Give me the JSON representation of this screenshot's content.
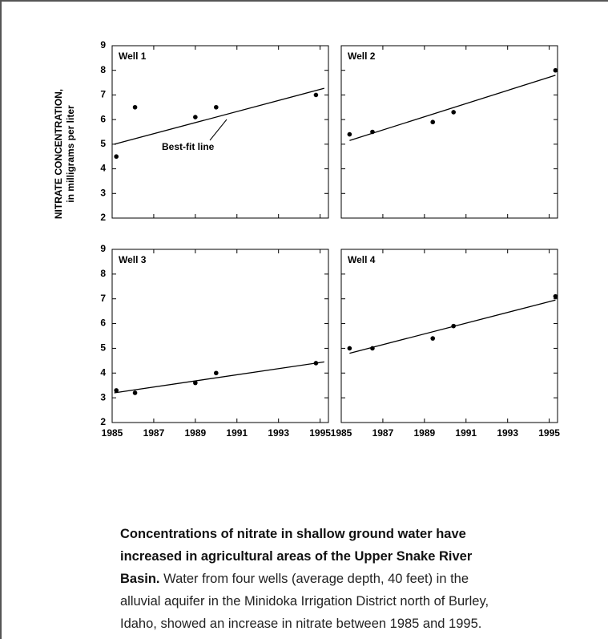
{
  "y_label": [
    "NITRATE CONCENTRATION,",
    "in milligrams per liter"
  ],
  "chart_data": [
    {
      "type": "scatter",
      "title": "Well 1",
      "x": [
        1985.2,
        1986.1,
        1989,
        1990,
        1994.8
      ],
      "values": [
        4.5,
        6.5,
        6.1,
        6.5,
        7.0
      ],
      "fit": {
        "x": [
          1985.1,
          1995.2
        ],
        "values": [
          5.0,
          7.27
        ]
      },
      "annotation": "Best-fit line",
      "xlim": [
        1985,
        1995.4
      ],
      "ylim": [
        2,
        9
      ],
      "xticks": [
        1985,
        1987,
        1989,
        1991,
        1993,
        1995
      ],
      "yticks": [
        2,
        3,
        4,
        5,
        6,
        7,
        8,
        9
      ],
      "color": "#000000"
    },
    {
      "type": "scatter",
      "title": "Well 2",
      "x": [
        1985.4,
        1986.5,
        1989.4,
        1990.4,
        1995.3
      ],
      "values": [
        5.4,
        5.5,
        5.9,
        6.3,
        8.0
      ],
      "fit": {
        "x": [
          1985.4,
          1995.3
        ],
        "values": [
          5.15,
          7.8
        ]
      },
      "xlim": [
        1985,
        1995.4
      ],
      "ylim": [
        2,
        9
      ],
      "xticks": [
        1985,
        1987,
        1989,
        1991,
        1993,
        1995
      ],
      "yticks": [
        2,
        3,
        4,
        5,
        6,
        7,
        8,
        9
      ],
      "color": "#000000"
    },
    {
      "type": "scatter",
      "title": "Well 3",
      "x": [
        1985.2,
        1986.1,
        1989,
        1990,
        1994.8
      ],
      "values": [
        3.3,
        3.2,
        3.6,
        4.0,
        4.4
      ],
      "fit": {
        "x": [
          1985.1,
          1995.2
        ],
        "values": [
          3.2,
          4.45
        ]
      },
      "xlim": [
        1985,
        1995.4
      ],
      "ylim": [
        2,
        9
      ],
      "xticks": [
        1985,
        1987,
        1989,
        1991,
        1993,
        1995
      ],
      "yticks": [
        2,
        3,
        4,
        5,
        6,
        7,
        8,
        9
      ],
      "color": "#000000"
    },
    {
      "type": "scatter",
      "title": "Well 4",
      "x": [
        1985.4,
        1986.5,
        1989.4,
        1990.4,
        1995.3
      ],
      "values": [
        5.0,
        5.0,
        5.4,
        5.9,
        7.1
      ],
      "fit": {
        "x": [
          1985.4,
          1995.3
        ],
        "values": [
          4.8,
          6.95
        ]
      },
      "xlim": [
        1985,
        1995.4
      ],
      "ylim": [
        2,
        9
      ],
      "xticks": [
        1985,
        1987,
        1989,
        1991,
        1993,
        1995
      ],
      "yticks": [
        2,
        3,
        4,
        5,
        6,
        7,
        8,
        9
      ],
      "color": "#000000"
    }
  ],
  "caption": {
    "bold": "Concentrations of nitrate in shallow ground water have increased in agricultural areas of the Upper Snake River Basin.",
    "text": " Water from four wells (average depth, 40 feet) in the alluvial aquifer in the Minidoka Irrigation District north of Burley, Idaho, showed an increase in nitrate between 1985 and 1995."
  }
}
